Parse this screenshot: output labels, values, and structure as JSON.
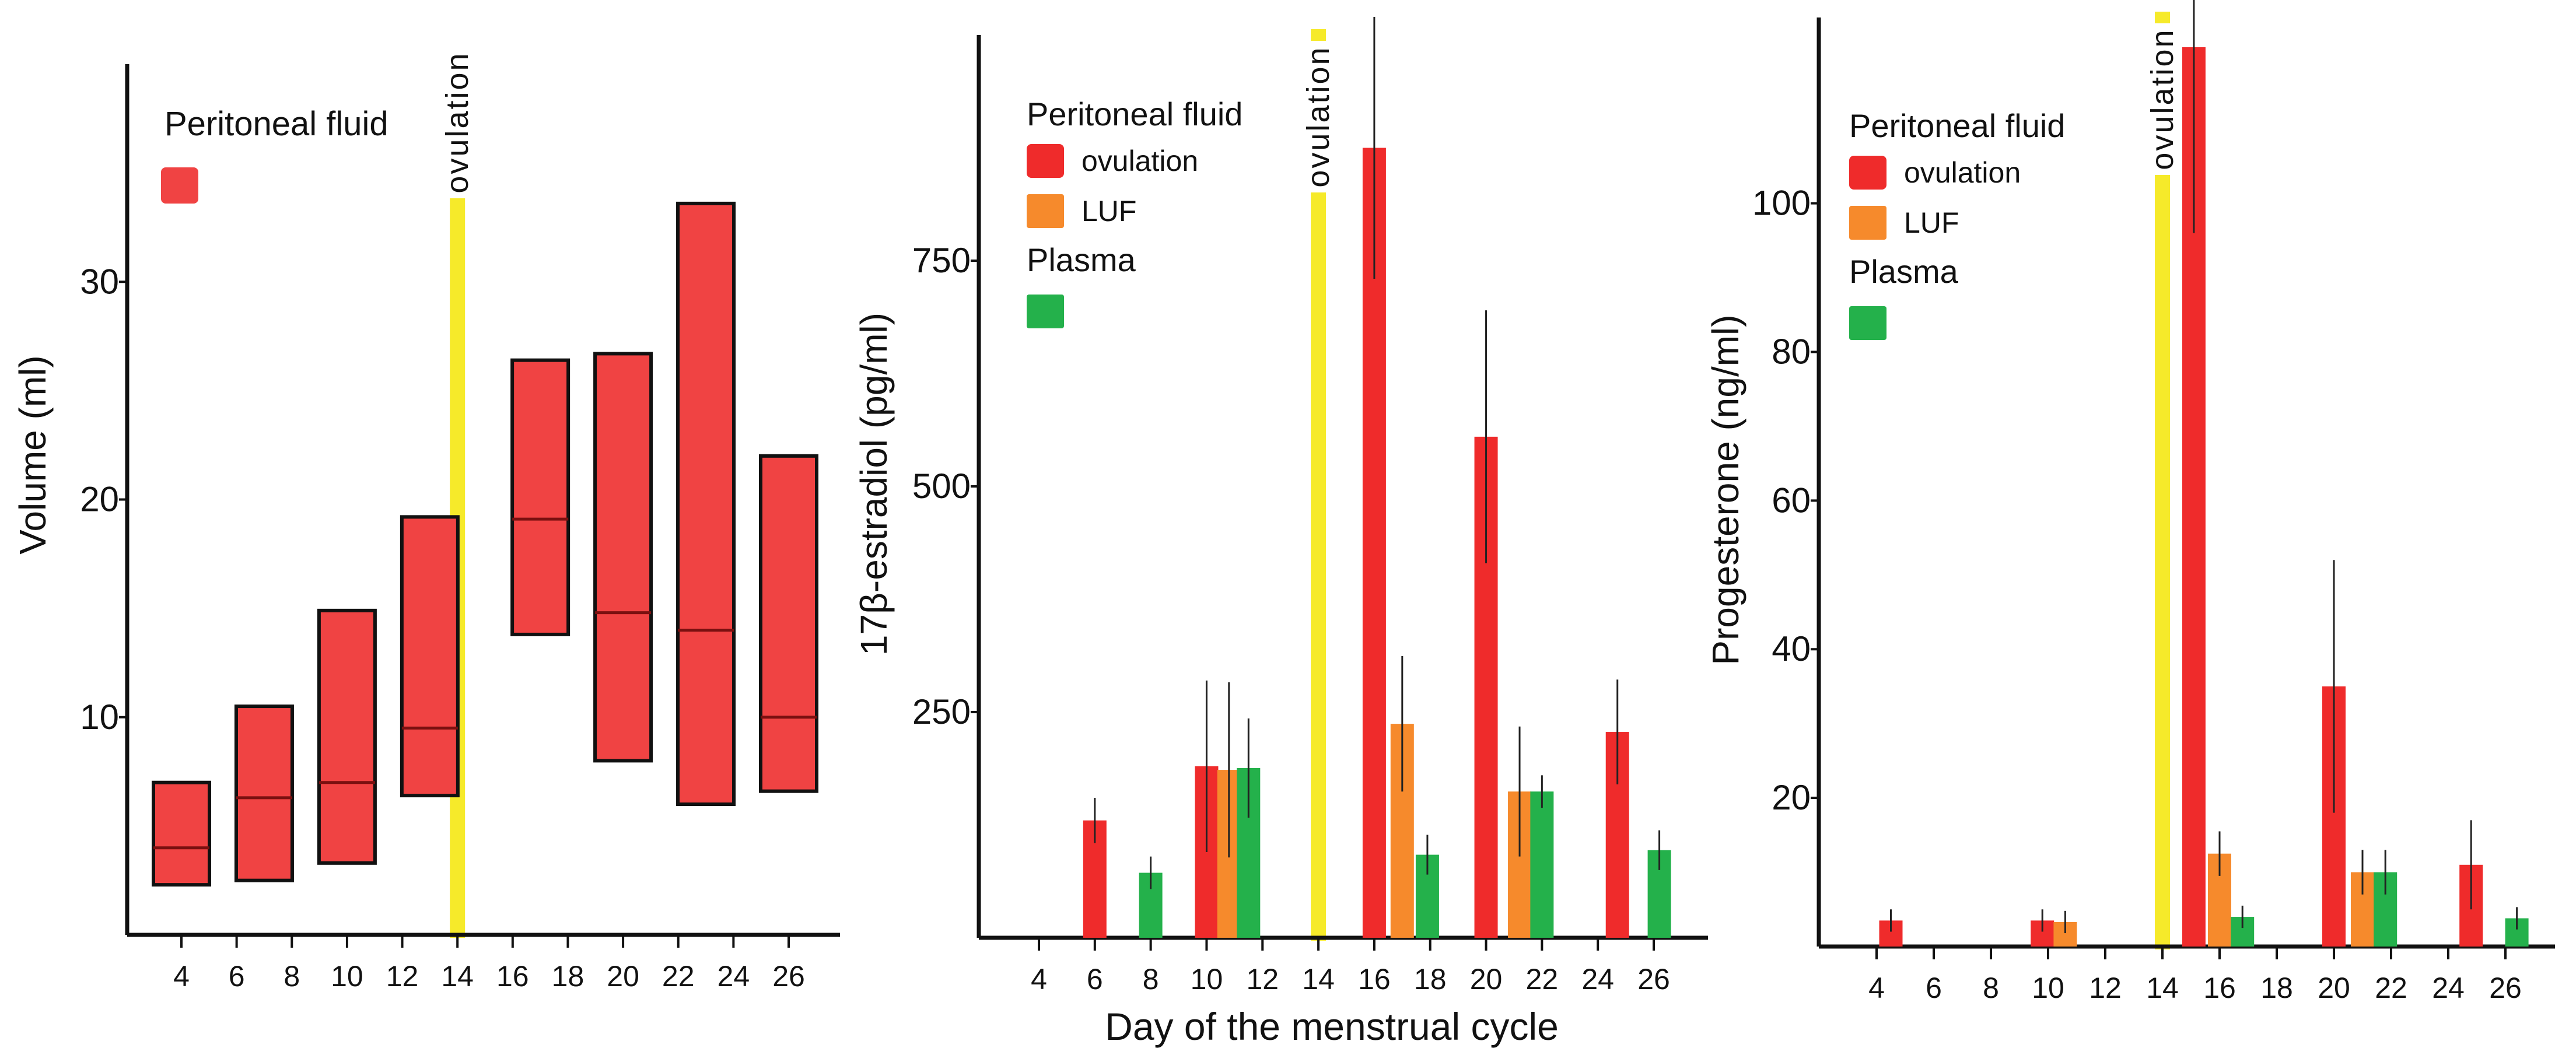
{
  "figure": {
    "shared_xlabel": "Day of the menstrual cycle",
    "ovulation_label": "ovulation",
    "colors": {
      "ovulation_red": "#ef2b2b",
      "volume_red": "#f04343",
      "luf_orange": "#f68a2c",
      "plasma_green": "#24b14b",
      "ovulation_yellow": "#f6ea2a",
      "axis": "#111111"
    }
  },
  "chart_data": [
    {
      "type": "box",
      "title": "",
      "ylabel": "Volume (ml)",
      "xlabel": "",
      "xticks": [
        "4",
        "6",
        "8",
        "10",
        "12",
        "14",
        "16",
        "18",
        "20",
        "22",
        "24",
        "26"
      ],
      "yticks": [
        "10",
        "20",
        "30"
      ],
      "ylim": [
        0,
        40
      ],
      "ovulation_day": 14,
      "legend": {
        "title": "Peritoneal fluid",
        "entries": [
          {
            "label": "",
            "color": "#f04343"
          }
        ]
      },
      "series": [
        {
          "name": "Peritoneal fluid",
          "color": "#f04343",
          "boxes": [
            {
              "day": 4,
              "low": 2.3,
              "median": 4.0,
              "high": 7.0
            },
            {
              "day": 7,
              "low": 2.5,
              "median": 6.3,
              "high": 10.5
            },
            {
              "day": 10,
              "low": 3.3,
              "median": 7.0,
              "high": 14.9
            },
            {
              "day": 13,
              "low": 6.4,
              "median": 9.5,
              "high": 19.2
            },
            {
              "day": 17,
              "low": 13.8,
              "median": 19.1,
              "high": 26.4
            },
            {
              "day": 20,
              "low": 8.0,
              "median": 14.8,
              "high": 26.7
            },
            {
              "day": 23,
              "low": 6.0,
              "median": 14.0,
              "high": 33.6
            },
            {
              "day": 26,
              "low": 6.6,
              "median": 10.0,
              "high": 22.0
            }
          ]
        }
      ]
    },
    {
      "type": "bar",
      "title": "",
      "ylabel": "17β-estradiol (pg/ml)",
      "xlabel": "Day of the menstrual cycle",
      "xticks": [
        "4",
        "6",
        "8",
        "10",
        "12",
        "14",
        "16",
        "18",
        "20",
        "22",
        "24",
        "26"
      ],
      "yticks": [
        "250",
        "500",
        "750"
      ],
      "ylim": [
        0,
        1000
      ],
      "ovulation_day": 14,
      "legend": {
        "entries": [
          {
            "group": "Peritoneal fluid",
            "label": "ovulation",
            "color": "#ef2b2b"
          },
          {
            "group": "Peritoneal fluid",
            "label": "LUF",
            "color": "#f68a2c"
          },
          {
            "group": "Plasma",
            "label": "",
            "color": "#24b14b"
          }
        ]
      },
      "series": [
        {
          "name": "ovulation",
          "color": "#ef2b2b",
          "points": [
            {
              "day": 6,
              "value": 130,
              "err": 25
            },
            {
              "day": 10,
              "value": 190,
              "err": 95
            },
            {
              "day": 16,
              "value": 875,
              "err": 145
            },
            {
              "day": 20,
              "value": 555,
              "err": 140
            },
            {
              "day": 24.7,
              "value": 228,
              "err": 58
            }
          ]
        },
        {
          "name": "LUF",
          "color": "#f68a2c",
          "points": [
            {
              "day": 10.8,
              "value": 186,
              "err": 97
            },
            {
              "day": 17,
              "value": 237,
              "err": 75
            },
            {
              "day": 21.2,
              "value": 162,
              "err": 72
            }
          ]
        },
        {
          "name": "Plasma",
          "color": "#24b14b",
          "points": [
            {
              "day": 8,
              "value": 72,
              "err": 18
            },
            {
              "day": 11.5,
              "value": 188,
              "err": 55
            },
            {
              "day": 17.9,
              "value": 92,
              "err": 22
            },
            {
              "day": 22,
              "value": 162,
              "err": 18
            },
            {
              "day": 26.2,
              "value": 97,
              "err": 22
            }
          ]
        }
      ]
    },
    {
      "type": "bar",
      "title": "",
      "ylabel": "Progesterone (ng/ml)",
      "xlabel": "",
      "xticks": [
        "4",
        "6",
        "8",
        "10",
        "12",
        "14",
        "16",
        "18",
        "20",
        "22",
        "24",
        "26"
      ],
      "yticks": [
        "20",
        "40",
        "60",
        "80",
        "100"
      ],
      "ylim": [
        0,
        125
      ],
      "ovulation_day": 14,
      "legend": {
        "entries": [
          {
            "group": "Peritoneal fluid",
            "label": "ovulation",
            "color": "#ef2b2b"
          },
          {
            "group": "Peritoneal fluid",
            "label": "LUF",
            "color": "#f68a2c"
          },
          {
            "group": "Plasma",
            "label": "",
            "color": "#24b14b"
          }
        ]
      },
      "series": [
        {
          "name": "ovulation",
          "color": "#ef2b2b",
          "points": [
            {
              "day": 4.5,
              "value": 3.5,
              "err": 1.5
            },
            {
              "day": 9.8,
              "value": 3.5,
              "err": 1.5
            },
            {
              "day": 15.1,
              "value": 121,
              "err": 25
            },
            {
              "day": 20,
              "value": 35,
              "err": 17
            },
            {
              "day": 24.8,
              "value": 11,
              "err": 6
            }
          ]
        },
        {
          "name": "LUF",
          "color": "#f68a2c",
          "points": [
            {
              "day": 10.6,
              "value": 3.3,
              "err": 1.5
            },
            {
              "day": 16,
              "value": 12.5,
              "err": 3
            },
            {
              "day": 21,
              "value": 10,
              "err": 3
            }
          ]
        },
        {
          "name": "Plasma",
          "color": "#24b14b",
          "points": [
            {
              "day": 16.8,
              "value": 4,
              "err": 1.5
            },
            {
              "day": 21.8,
              "value": 10,
              "err": 3
            },
            {
              "day": 26.4,
              "value": 3.8,
              "err": 1.5
            }
          ]
        }
      ]
    }
  ]
}
